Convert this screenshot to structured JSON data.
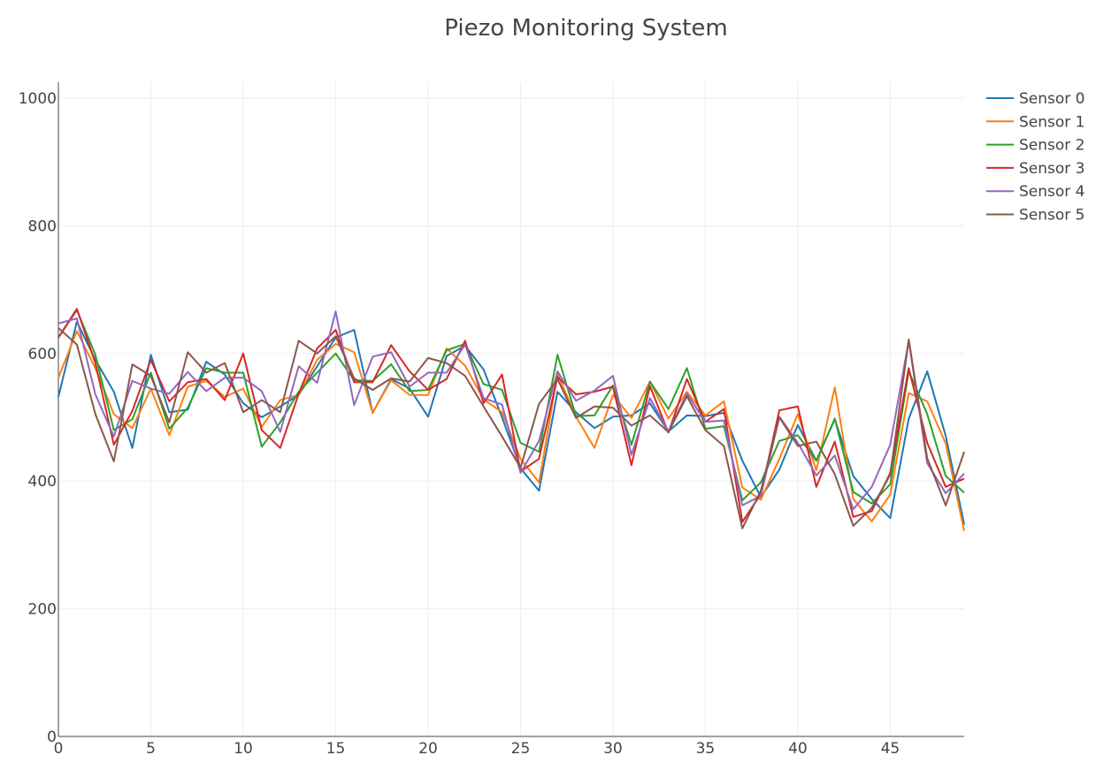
{
  "chart_data": {
    "type": "line",
    "title": "Piezo Monitoring System",
    "xlabel": "",
    "ylabel": "",
    "xlim": [
      0,
      49
    ],
    "ylim": [
      0,
      1025
    ],
    "x_ticks": [
      0,
      5,
      10,
      15,
      20,
      25,
      30,
      35,
      40,
      45
    ],
    "y_ticks": [
      0,
      200,
      400,
      600,
      800,
      1000
    ],
    "grid": true,
    "legend_position": "top-right",
    "x": [
      0,
      1,
      2,
      3,
      4,
      5,
      6,
      7,
      8,
      9,
      10,
      11,
      12,
      13,
      14,
      15,
      16,
      17,
      18,
      19,
      20,
      21,
      22,
      23,
      24,
      25,
      26,
      27,
      28,
      29,
      30,
      31,
      32,
      33,
      34,
      35,
      36,
      37,
      38,
      39,
      40,
      41,
      42,
      43,
      44,
      45,
      46,
      47,
      48,
      49
    ],
    "series": [
      {
        "name": "Sensor 0",
        "color": "#1f77b4",
        "values": [
          532,
          650,
          590,
          540,
          452,
          598,
          508,
          512,
          587,
          567,
          522,
          500,
          517,
          535,
          580,
          625,
          637,
          507,
          560,
          545,
          501,
          596,
          612,
          575,
          500,
          420,
          385,
          540,
          508,
          483,
          501,
          503,
          522,
          478,
          503,
          502,
          507,
          432,
          375,
          418,
          488,
          432,
          497,
          408,
          372,
          342,
          498,
          572,
          471,
          332
        ]
      },
      {
        "name": "Sensor 1",
        "color": "#ff7f0e",
        "values": [
          562,
          635,
          577,
          505,
          483,
          545,
          472,
          548,
          557,
          532,
          545,
          485,
          527,
          535,
          590,
          615,
          602,
          507,
          558,
          535,
          535,
          608,
          581,
          528,
          508,
          435,
          398,
          568,
          501,
          452,
          535,
          499,
          556,
          498,
          540,
          503,
          525,
          390,
          371,
          435,
          505,
          417,
          547,
          372,
          337,
          379,
          538,
          525,
          459,
          322
        ]
      },
      {
        "name": "Sensor 2",
        "color": "#2ca02c",
        "values": [
          625,
          668,
          598,
          480,
          497,
          570,
          482,
          515,
          577,
          570,
          570,
          454,
          492,
          540,
          570,
          600,
          558,
          557,
          583,
          541,
          543,
          605,
          615,
          552,
          543,
          460,
          446,
          598,
          502,
          503,
          550,
          457,
          556,
          513,
          577,
          482,
          486,
          370,
          398,
          463,
          472,
          432,
          498,
          383,
          365,
          395,
          572,
          505,
          408,
          382
        ]
      },
      {
        "name": "Sensor 3",
        "color": "#d62728",
        "values": [
          625,
          670,
          585,
          457,
          510,
          590,
          525,
          555,
          560,
          527,
          600,
          480,
          452,
          537,
          608,
          637,
          555,
          555,
          613,
          572,
          543,
          560,
          620,
          522,
          567,
          415,
          435,
          563,
          536,
          540,
          548,
          425,
          549,
          476,
          560,
          493,
          513,
          336,
          380,
          511,
          517,
          391,
          462,
          344,
          353,
          413,
          577,
          460,
          391,
          404
        ]
      },
      {
        "name": "Sensor 4",
        "color": "#9467bd",
        "values": [
          647,
          655,
          536,
          470,
          557,
          545,
          537,
          571,
          541,
          562,
          562,
          541,
          477,
          580,
          554,
          666,
          519,
          595,
          602,
          548,
          570,
          570,
          614,
          530,
          520,
          413,
          463,
          572,
          526,
          542,
          565,
          441,
          530,
          478,
          537,
          493,
          495,
          362,
          377,
          501,
          460,
          409,
          440,
          356,
          391,
          457,
          620,
          428,
          381,
          412
        ]
      },
      {
        "name": "Sensor 5",
        "color": "#8c564b",
        "values": [
          640,
          614,
          505,
          431,
          583,
          565,
          492,
          602,
          570,
          585,
          508,
          527,
          508,
          620,
          600,
          627,
          561,
          543,
          561,
          556,
          593,
          585,
          565,
          517,
          470,
          421,
          521,
          560,
          499,
          517,
          515,
          487,
          503,
          477,
          533,
          480,
          455,
          326,
          385,
          500,
          455,
          462,
          411,
          330,
          358,
          410,
          622,
          436,
          362,
          446
        ]
      }
    ]
  }
}
